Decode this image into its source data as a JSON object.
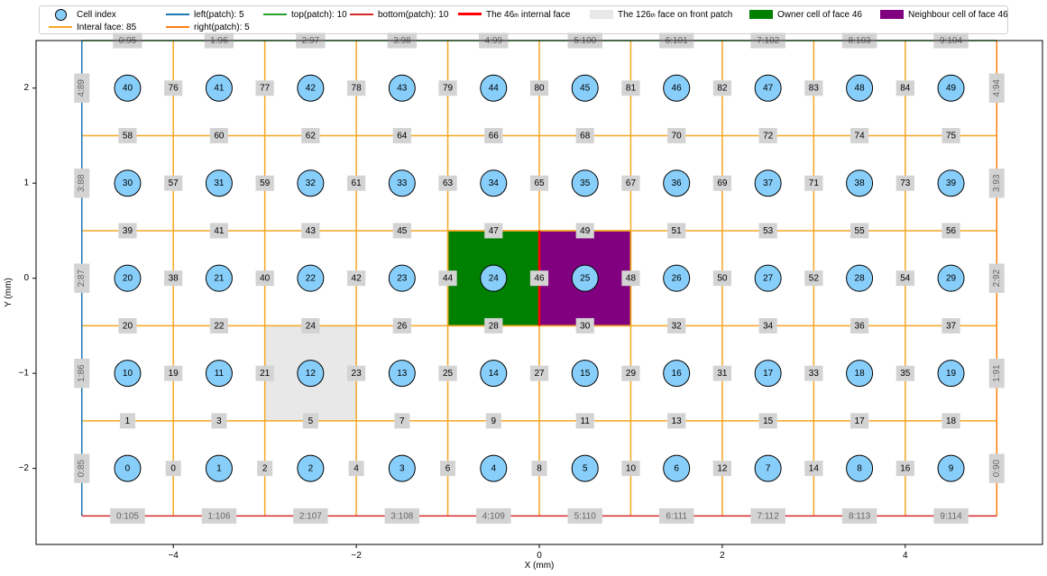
{
  "chart_data": {
    "type": "mesh",
    "xlabel": "X (mm)",
    "ylabel": "Y (mm)",
    "xlim": [
      -5.5,
      5.5
    ],
    "ylim": [
      -2.8,
      2.5
    ],
    "x_ticks": [
      -4,
      -2,
      0,
      2,
      4
    ],
    "y_ticks": [
      -2,
      -1,
      0,
      1,
      2
    ],
    "x_tick_labels": [
      "−4",
      "−2",
      "0",
      "2",
      "4"
    ],
    "y_tick_labels": [
      "−2",
      "−1",
      "0",
      "1",
      "2"
    ],
    "nx": 10,
    "ny": 5,
    "dx": 1,
    "dy": 1,
    "x0": -5,
    "y0": -2.5,
    "legend": [
      {
        "label": "Cell index",
        "kind": "circle",
        "color": "#87cefa"
      },
      {
        "label": "Interal face: 85",
        "kind": "line",
        "color": "#f5a623"
      },
      {
        "label": "left(patch): 5",
        "kind": "line",
        "color": "#1f77b4"
      },
      {
        "label": "right(patch): 5",
        "kind": "line",
        "color": "#ff7f0e"
      },
      {
        "label": "top(patch): 10",
        "kind": "line",
        "color": "#2ca02c"
      },
      {
        "label": "bottom(patch): 10",
        "kind": "line",
        "color": "#d62728"
      },
      {
        "label": "The 46",
        "sub": "th",
        "label2": " internal face",
        "kind": "thickline",
        "color": "#ff0000"
      },
      {
        "label": "The 126",
        "sub": "th",
        "label2": " face on front patch",
        "kind": "patch",
        "color": "#e8e8e8"
      },
      {
        "label": "Owner cell of face 46",
        "kind": "patch",
        "color": "#008000"
      },
      {
        "label": "Neighbour cell of face 46",
        "kind": "patch",
        "color": "#800080"
      }
    ],
    "colors": {
      "internal": "#f5a623",
      "left": "#1f77b4",
      "right": "#ff7f0e",
      "top": "#2ca02c",
      "bottom": "#d62728",
      "highlight_face": "#ff0000",
      "front_face": "#e8e8e8",
      "owner": "#008000",
      "neighbour": "#800080",
      "cell": "#87cefa",
      "label_box": "#d3d3d3"
    },
    "cells": [
      {
        "id": "0",
        "x": -4.5,
        "y": -2
      },
      {
        "id": "1",
        "x": -3.5,
        "y": -2
      },
      {
        "id": "2",
        "x": -2.5,
        "y": -2
      },
      {
        "id": "3",
        "x": -1.5,
        "y": -2
      },
      {
        "id": "4",
        "x": -0.5,
        "y": -2
      },
      {
        "id": "5",
        "x": 0.5,
        "y": -2
      },
      {
        "id": "6",
        "x": 1.5,
        "y": -2
      },
      {
        "id": "7",
        "x": 2.5,
        "y": -2
      },
      {
        "id": "8",
        "x": 3.5,
        "y": -2
      },
      {
        "id": "9",
        "x": 4.5,
        "y": -2
      },
      {
        "id": "10",
        "x": -4.5,
        "y": -1
      },
      {
        "id": "11",
        "x": -3.5,
        "y": -1
      },
      {
        "id": "12",
        "x": -2.5,
        "y": -1
      },
      {
        "id": "13",
        "x": -1.5,
        "y": -1
      },
      {
        "id": "14",
        "x": -0.5,
        "y": -1
      },
      {
        "id": "15",
        "x": 0.5,
        "y": -1
      },
      {
        "id": "16",
        "x": 1.5,
        "y": -1
      },
      {
        "id": "17",
        "x": 2.5,
        "y": -1
      },
      {
        "id": "18",
        "x": 3.5,
        "y": -1
      },
      {
        "id": "19",
        "x": 4.5,
        "y": -1
      },
      {
        "id": "20",
        "x": -4.5,
        "y": 0
      },
      {
        "id": "21",
        "x": -3.5,
        "y": 0
      },
      {
        "id": "22",
        "x": -2.5,
        "y": 0
      },
      {
        "id": "23",
        "x": -1.5,
        "y": 0
      },
      {
        "id": "24",
        "x": -0.5,
        "y": 0
      },
      {
        "id": "25",
        "x": 0.5,
        "y": 0
      },
      {
        "id": "26",
        "x": 1.5,
        "y": 0
      },
      {
        "id": "27",
        "x": 2.5,
        "y": 0
      },
      {
        "id": "28",
        "x": 3.5,
        "y": 0
      },
      {
        "id": "29",
        "x": 4.5,
        "y": 0
      },
      {
        "id": "30",
        "x": -4.5,
        "y": 1
      },
      {
        "id": "31",
        "x": -3.5,
        "y": 1
      },
      {
        "id": "32",
        "x": -2.5,
        "y": 1
      },
      {
        "id": "33",
        "x": -1.5,
        "y": 1
      },
      {
        "id": "34",
        "x": -0.5,
        "y": 1
      },
      {
        "id": "35",
        "x": 0.5,
        "y": 1
      },
      {
        "id": "36",
        "x": 1.5,
        "y": 1
      },
      {
        "id": "37",
        "x": 2.5,
        "y": 1
      },
      {
        "id": "38",
        "x": 3.5,
        "y": 1
      },
      {
        "id": "39",
        "x": 4.5,
        "y": 1
      },
      {
        "id": "40",
        "x": -4.5,
        "y": 2
      },
      {
        "id": "41",
        "x": -3.5,
        "y": 2
      },
      {
        "id": "42",
        "x": -2.5,
        "y": 2
      },
      {
        "id": "43",
        "x": -1.5,
        "y": 2
      },
      {
        "id": "44",
        "x": -0.5,
        "y": 2
      },
      {
        "id": "45",
        "x": 0.5,
        "y": 2
      },
      {
        "id": "46",
        "x": 1.5,
        "y": 2
      },
      {
        "id": "47",
        "x": 2.5,
        "y": 2
      },
      {
        "id": "48",
        "x": 3.5,
        "y": 2
      },
      {
        "id": "49",
        "x": 4.5,
        "y": 2
      }
    ],
    "internal_face_labels": [
      {
        "id": "0",
        "x": -4,
        "y": -2
      },
      {
        "id": "2",
        "x": -3,
        "y": -2
      },
      {
        "id": "4",
        "x": -2,
        "y": -2
      },
      {
        "id": "6",
        "x": -1,
        "y": -2
      },
      {
        "id": "8",
        "x": 0,
        "y": -2
      },
      {
        "id": "10",
        "x": 1,
        "y": -2
      },
      {
        "id": "12",
        "x": 2,
        "y": -2
      },
      {
        "id": "14",
        "x": 3,
        "y": -2
      },
      {
        "id": "16",
        "x": 4,
        "y": -2
      },
      {
        "id": "1",
        "x": -4.5,
        "y": -1.5
      },
      {
        "id": "3",
        "x": -3.5,
        "y": -1.5
      },
      {
        "id": "5",
        "x": -2.5,
        "y": -1.5
      },
      {
        "id": "7",
        "x": -1.5,
        "y": -1.5
      },
      {
        "id": "9",
        "x": -0.5,
        "y": -1.5
      },
      {
        "id": "11",
        "x": 0.5,
        "y": -1.5
      },
      {
        "id": "13",
        "x": 1.5,
        "y": -1.5
      },
      {
        "id": "15",
        "x": 2.5,
        "y": -1.5
      },
      {
        "id": "17",
        "x": 3.5,
        "y": -1.5
      },
      {
        "id": "18",
        "x": 4.5,
        "y": -1.5
      },
      {
        "id": "19",
        "x": -4,
        "y": -1
      },
      {
        "id": "21",
        "x": -3,
        "y": -1
      },
      {
        "id": "23",
        "x": -2,
        "y": -1
      },
      {
        "id": "25",
        "x": -1,
        "y": -1
      },
      {
        "id": "27",
        "x": 0,
        "y": -1
      },
      {
        "id": "29",
        "x": 1,
        "y": -1
      },
      {
        "id": "31",
        "x": 2,
        "y": -1
      },
      {
        "id": "33",
        "x": 3,
        "y": -1
      },
      {
        "id": "35",
        "x": 4,
        "y": -1
      },
      {
        "id": "20",
        "x": -4.5,
        "y": -0.5
      },
      {
        "id": "22",
        "x": -3.5,
        "y": -0.5
      },
      {
        "id": "24",
        "x": -2.5,
        "y": -0.5
      },
      {
        "id": "26",
        "x": -1.5,
        "y": -0.5
      },
      {
        "id": "28",
        "x": -0.5,
        "y": -0.5
      },
      {
        "id": "30",
        "x": 0.5,
        "y": -0.5
      },
      {
        "id": "32",
        "x": 1.5,
        "y": -0.5
      },
      {
        "id": "34",
        "x": 2.5,
        "y": -0.5
      },
      {
        "id": "36",
        "x": 3.5,
        "y": -0.5
      },
      {
        "id": "37",
        "x": 4.5,
        "y": -0.5
      },
      {
        "id": "38",
        "x": -4,
        "y": 0
      },
      {
        "id": "40",
        "x": -3,
        "y": 0
      },
      {
        "id": "42",
        "x": -2,
        "y": 0
      },
      {
        "id": "44",
        "x": -1,
        "y": 0
      },
      {
        "id": "46",
        "x": 0,
        "y": 0
      },
      {
        "id": "48",
        "x": 1,
        "y": 0
      },
      {
        "id": "50",
        "x": 2,
        "y": 0
      },
      {
        "id": "52",
        "x": 3,
        "y": 0
      },
      {
        "id": "54",
        "x": 4,
        "y": 0
      },
      {
        "id": "39",
        "x": -4.5,
        "y": 0.5
      },
      {
        "id": "41",
        "x": -3.5,
        "y": 0.5
      },
      {
        "id": "43",
        "x": -2.5,
        "y": 0.5
      },
      {
        "id": "45",
        "x": -1.5,
        "y": 0.5
      },
      {
        "id": "47",
        "x": -0.5,
        "y": 0.5
      },
      {
        "id": "49",
        "x": 0.5,
        "y": 0.5
      },
      {
        "id": "51",
        "x": 1.5,
        "y": 0.5
      },
      {
        "id": "53",
        "x": 2.5,
        "y": 0.5
      },
      {
        "id": "55",
        "x": 3.5,
        "y": 0.5
      },
      {
        "id": "56",
        "x": 4.5,
        "y": 0.5
      },
      {
        "id": "57",
        "x": -4,
        "y": 1
      },
      {
        "id": "59",
        "x": -3,
        "y": 1
      },
      {
        "id": "61",
        "x": -2,
        "y": 1
      },
      {
        "id": "63",
        "x": -1,
        "y": 1
      },
      {
        "id": "65",
        "x": 0,
        "y": 1
      },
      {
        "id": "67",
        "x": 1,
        "y": 1
      },
      {
        "id": "69",
        "x": 2,
        "y": 1
      },
      {
        "id": "71",
        "x": 3,
        "y": 1
      },
      {
        "id": "73",
        "x": 4,
        "y": 1
      },
      {
        "id": "58",
        "x": -4.5,
        "y": 1.5
      },
      {
        "id": "60",
        "x": -3.5,
        "y": 1.5
      },
      {
        "id": "62",
        "x": -2.5,
        "y": 1.5
      },
      {
        "id": "64",
        "x": -1.5,
        "y": 1.5
      },
      {
        "id": "66",
        "x": -0.5,
        "y": 1.5
      },
      {
        "id": "68",
        "x": 0.5,
        "y": 1.5
      },
      {
        "id": "70",
        "x": 1.5,
        "y": 1.5
      },
      {
        "id": "72",
        "x": 2.5,
        "y": 1.5
      },
      {
        "id": "74",
        "x": 3.5,
        "y": 1.5
      },
      {
        "id": "75",
        "x": 4.5,
        "y": 1.5
      },
      {
        "id": "76",
        "x": -4,
        "y": 2
      },
      {
        "id": "77",
        "x": -3,
        "y": 2
      },
      {
        "id": "78",
        "x": -2,
        "y": 2
      },
      {
        "id": "79",
        "x": -1,
        "y": 2
      },
      {
        "id": "80",
        "x": 0,
        "y": 2
      },
      {
        "id": "81",
        "x": 1,
        "y": 2
      },
      {
        "id": "82",
        "x": 2,
        "y": 2
      },
      {
        "id": "83",
        "x": 3,
        "y": 2
      },
      {
        "id": "84",
        "x": 4,
        "y": 2
      }
    ],
    "boundary_face_labels": [
      {
        "id": "0:95",
        "x": -4.5,
        "y": 2.5
      },
      {
        "id": "1:96",
        "x": -3.5,
        "y": 2.5
      },
      {
        "id": "2:97",
        "x": -2.5,
        "y": 2.5
      },
      {
        "id": "3:98",
        "x": -1.5,
        "y": 2.5
      },
      {
        "id": "4:99",
        "x": -0.5,
        "y": 2.5
      },
      {
        "id": "5:100",
        "x": 0.5,
        "y": 2.5
      },
      {
        "id": "6:101",
        "x": 1.5,
        "y": 2.5
      },
      {
        "id": "7:102",
        "x": 2.5,
        "y": 2.5
      },
      {
        "id": "8:103",
        "x": 3.5,
        "y": 2.5
      },
      {
        "id": "9:104",
        "x": 4.5,
        "y": 2.5
      },
      {
        "id": "0:105",
        "x": -4.5,
        "y": -2.5
      },
      {
        "id": "1:106",
        "x": -3.5,
        "y": -2.5
      },
      {
        "id": "2:107",
        "x": -2.5,
        "y": -2.5
      },
      {
        "id": "3:108",
        "x": -1.5,
        "y": -2.5
      },
      {
        "id": "4:109",
        "x": -0.5,
        "y": -2.5
      },
      {
        "id": "5:110",
        "x": 0.5,
        "y": -2.5
      },
      {
        "id": "6:111",
        "x": 1.5,
        "y": -2.5
      },
      {
        "id": "7:112",
        "x": 2.5,
        "y": -2.5
      },
      {
        "id": "8:113",
        "x": 3.5,
        "y": -2.5
      },
      {
        "id": "9:114",
        "x": 4.5,
        "y": -2.5
      },
      {
        "id": "0:85",
        "x": -5,
        "y": -2,
        "rot": true
      },
      {
        "id": "1:86",
        "x": -5,
        "y": -1,
        "rot": true
      },
      {
        "id": "2:87",
        "x": -5,
        "y": 0,
        "rot": true
      },
      {
        "id": "3:88",
        "x": -5,
        "y": 1,
        "rot": true
      },
      {
        "id": "4:89",
        "x": -5,
        "y": 2,
        "rot": true
      },
      {
        "id": "0:90",
        "x": 5,
        "y": -2,
        "rot": true
      },
      {
        "id": "1:91",
        "x": 5,
        "y": -1,
        "rot": true
      },
      {
        "id": "2:92",
        "x": 5,
        "y": 0,
        "rot": true
      },
      {
        "id": "3:93",
        "x": 5,
        "y": 1,
        "rot": true
      },
      {
        "id": "4:94",
        "x": 5,
        "y": 2,
        "rot": true
      }
    ],
    "front_face": {
      "x0": -3,
      "x1": -2,
      "y0": -1.5,
      "y1": -0.5
    },
    "owner_cell": {
      "x0": -1,
      "x1": 0,
      "y0": -0.5,
      "y1": 0.5
    },
    "neighbour_cell": {
      "x0": 0,
      "x1": 1,
      "y0": -0.5,
      "y1": 0.5
    },
    "highlight_face": {
      "x": 0,
      "y0": -0.5,
      "y1": 0.5
    }
  }
}
